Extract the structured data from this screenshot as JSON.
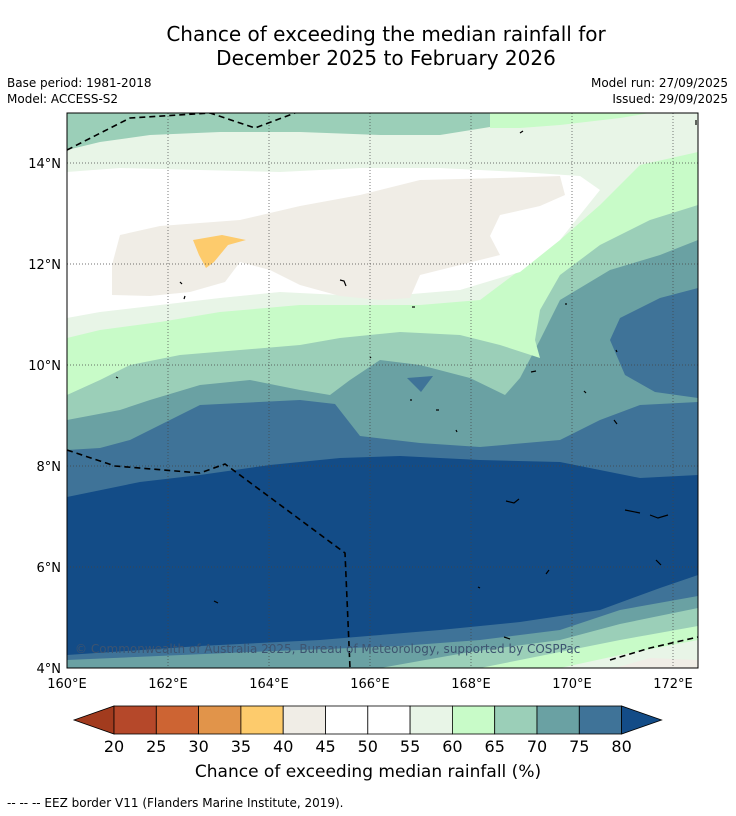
{
  "header": {
    "title_line1": "Chance of exceeding the median rainfall for",
    "title_line2": "December 2025 to February 2026",
    "base_period": "Base period: 1981-2018",
    "model": "Model: ACCESS-S2",
    "model_run": "Model run: 27/09/2025",
    "issued": "Issued: 29/09/2025"
  },
  "map": {
    "lon_labels": [
      "160°E",
      "162°E",
      "164°E",
      "166°E",
      "168°E",
      "170°E",
      "172°E"
    ],
    "lat_labels": [
      "14°N",
      "12°N",
      "10°N",
      "8°N",
      "6°N",
      "4°N"
    ],
    "copyright": "© Commonwealth of Australia 2025, Bureau of Meteorology, supported by COSPPac"
  },
  "colorbar": {
    "ticks": [
      "20",
      "25",
      "30",
      "35",
      "40",
      "45",
      "50",
      "55",
      "60",
      "65",
      "70",
      "75",
      "80"
    ],
    "colors": [
      "#a23b1e",
      "#b5482a",
      "#cd6433",
      "#e1944a",
      "#fdcb6c",
      "#f0ede6",
      "#ffffff",
      "#ffffff",
      "#e8f5e7",
      "#c8fbc8",
      "#9bcfb8",
      "#6aa1a3",
      "#3f7398",
      "#134c87"
    ],
    "label": "Chance of exceeding median rainfall (%)"
  },
  "footer": {
    "legend": "--  --  -- EEZ border V11 (Flanders Marine Institute, 2019)."
  }
}
